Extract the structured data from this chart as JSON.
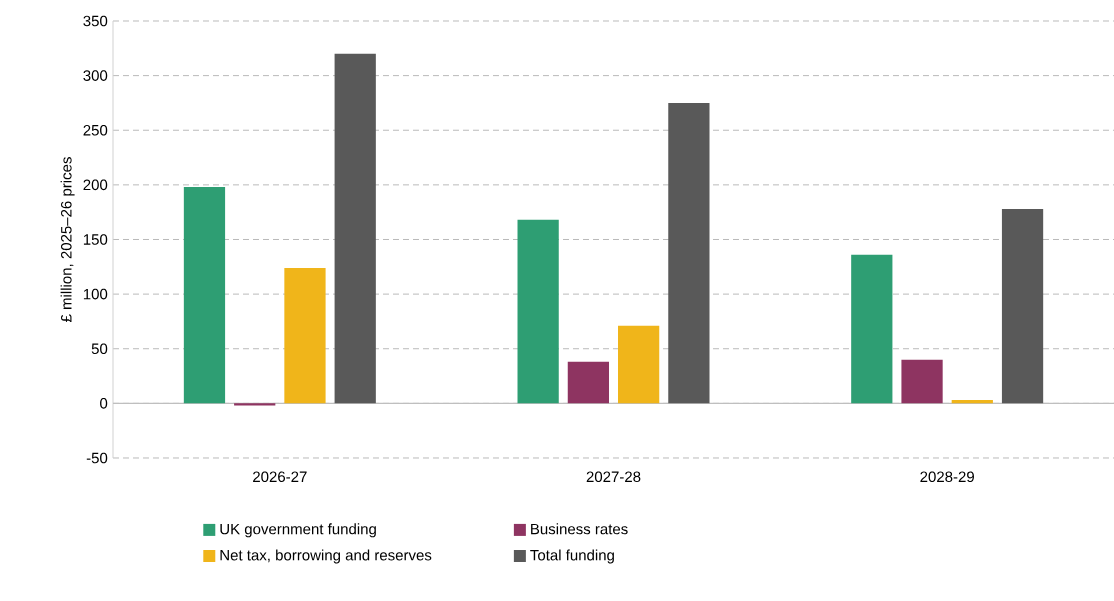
{
  "chart_data": {
    "type": "bar",
    "ylabel": "£ million, 2025–26 prices",
    "categories": [
      "2026-27",
      "2027-28",
      "2028-29"
    ],
    "series": [
      {
        "name": "UK government funding",
        "color": "#2e9e73",
        "values": [
          198,
          168,
          136
        ]
      },
      {
        "name": "Business rates",
        "color": "#8e3461",
        "values": [
          -2,
          38,
          40
        ]
      },
      {
        "name": "Net tax, borrowing and reserves",
        "color": "#f0b51a",
        "values": [
          124,
          71,
          3
        ]
      },
      {
        "name": "Total funding",
        "color": "#595959",
        "values": [
          320,
          275,
          178
        ]
      }
    ],
    "ylim": [
      -50,
      350
    ],
    "yticks": [
      -50,
      0,
      50,
      100,
      150,
      200,
      250,
      300,
      350
    ],
    "grid": "y",
    "legend": "bottom"
  }
}
